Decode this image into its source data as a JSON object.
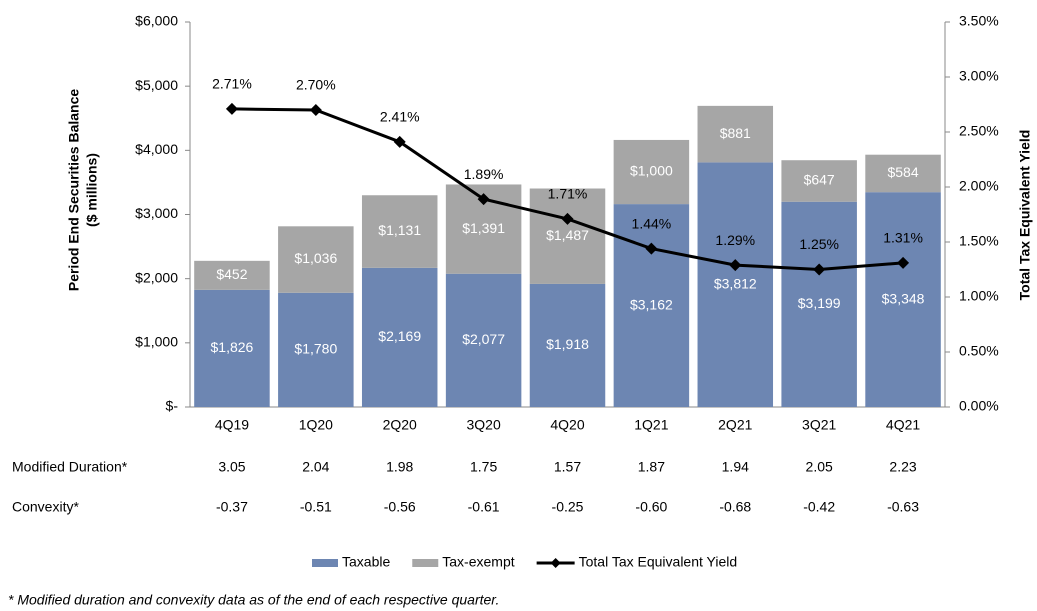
{
  "chart_data": {
    "type": "bar",
    "stacked": true,
    "categories": [
      "4Q19",
      "1Q20",
      "2Q20",
      "3Q20",
      "4Q20",
      "1Q21",
      "2Q21",
      "3Q21",
      "4Q21"
    ],
    "series": [
      {
        "name": "Taxable",
        "color": "#6d86b2",
        "values": [
          1826,
          1780,
          2169,
          2077,
          1918,
          3162,
          3812,
          3199,
          3348
        ],
        "value_labels": [
          "$1,826",
          "$1,780",
          "$2,169",
          "$2,077",
          "$1,918",
          "$3,162",
          "$3,812",
          "$3,199",
          "$3,348"
        ]
      },
      {
        "name": "Tax-exempt",
        "color": "#a6a6a6",
        "values": [
          452,
          1036,
          1131,
          1391,
          1487,
          1000,
          881,
          647,
          584
        ],
        "value_labels": [
          "$452",
          "$1,036",
          "$1,131",
          "$1,391",
          "$1,487",
          "$1,000",
          "$881",
          "$647",
          "$584"
        ]
      },
      {
        "name": "Total Tax Equivalent Yield",
        "type": "line",
        "axis": "y2",
        "color": "#000000",
        "values": [
          2.71,
          2.7,
          2.41,
          1.89,
          1.71,
          1.44,
          1.29,
          1.25,
          1.31
        ],
        "value_labels": [
          "2.71%",
          "2.70%",
          "2.41%",
          "1.89%",
          "1.71%",
          "1.44%",
          "1.29%",
          "1.25%",
          "1.31%"
        ]
      }
    ],
    "ylabel": [
      "Period End Securities Balance",
      "($ millions)"
    ],
    "y2label": "Total Tax Equivalent Yield",
    "ylim": [
      0,
      6000
    ],
    "yticks": [
      {
        "value": 0,
        "label": "$-"
      },
      {
        "value": 1000,
        "label": "$1,000"
      },
      {
        "value": 2000,
        "label": "$2,000"
      },
      {
        "value": 3000,
        "label": "$3,000"
      },
      {
        "value": 4000,
        "label": "$4,000"
      },
      {
        "value": 5000,
        "label": "$5,000"
      },
      {
        "value": 6000,
        "label": "$6,000"
      }
    ],
    "y2lim": [
      0,
      3.5
    ],
    "y2ticks": [
      {
        "value": 0,
        "label": "0.00%"
      },
      {
        "value": 0.5,
        "label": "0.50%"
      },
      {
        "value": 1,
        "label": "1.00%"
      },
      {
        "value": 1.5,
        "label": "1.50%"
      },
      {
        "value": 2,
        "label": "2.00%"
      },
      {
        "value": 2.5,
        "label": "2.50%"
      },
      {
        "value": 3,
        "label": "3.00%"
      },
      {
        "value": 3.5,
        "label": "3.50%"
      }
    ],
    "legend": "bottom",
    "table": [
      {
        "label": "Modified Duration*",
        "values": [
          "3.05",
          "2.04",
          "1.98",
          "1.75",
          "1.57",
          "1.87",
          "1.94",
          "2.05",
          "2.23"
        ]
      },
      {
        "label": "Convexity*",
        "values": [
          "-0.37",
          "-0.51",
          "-0.56",
          "-0.61",
          "-0.25",
          "-0.60",
          "-0.68",
          "-0.42",
          "-0.63"
        ]
      }
    ],
    "footnote": "* Modified duration and convexity data as of the end of each respective quarter."
  }
}
